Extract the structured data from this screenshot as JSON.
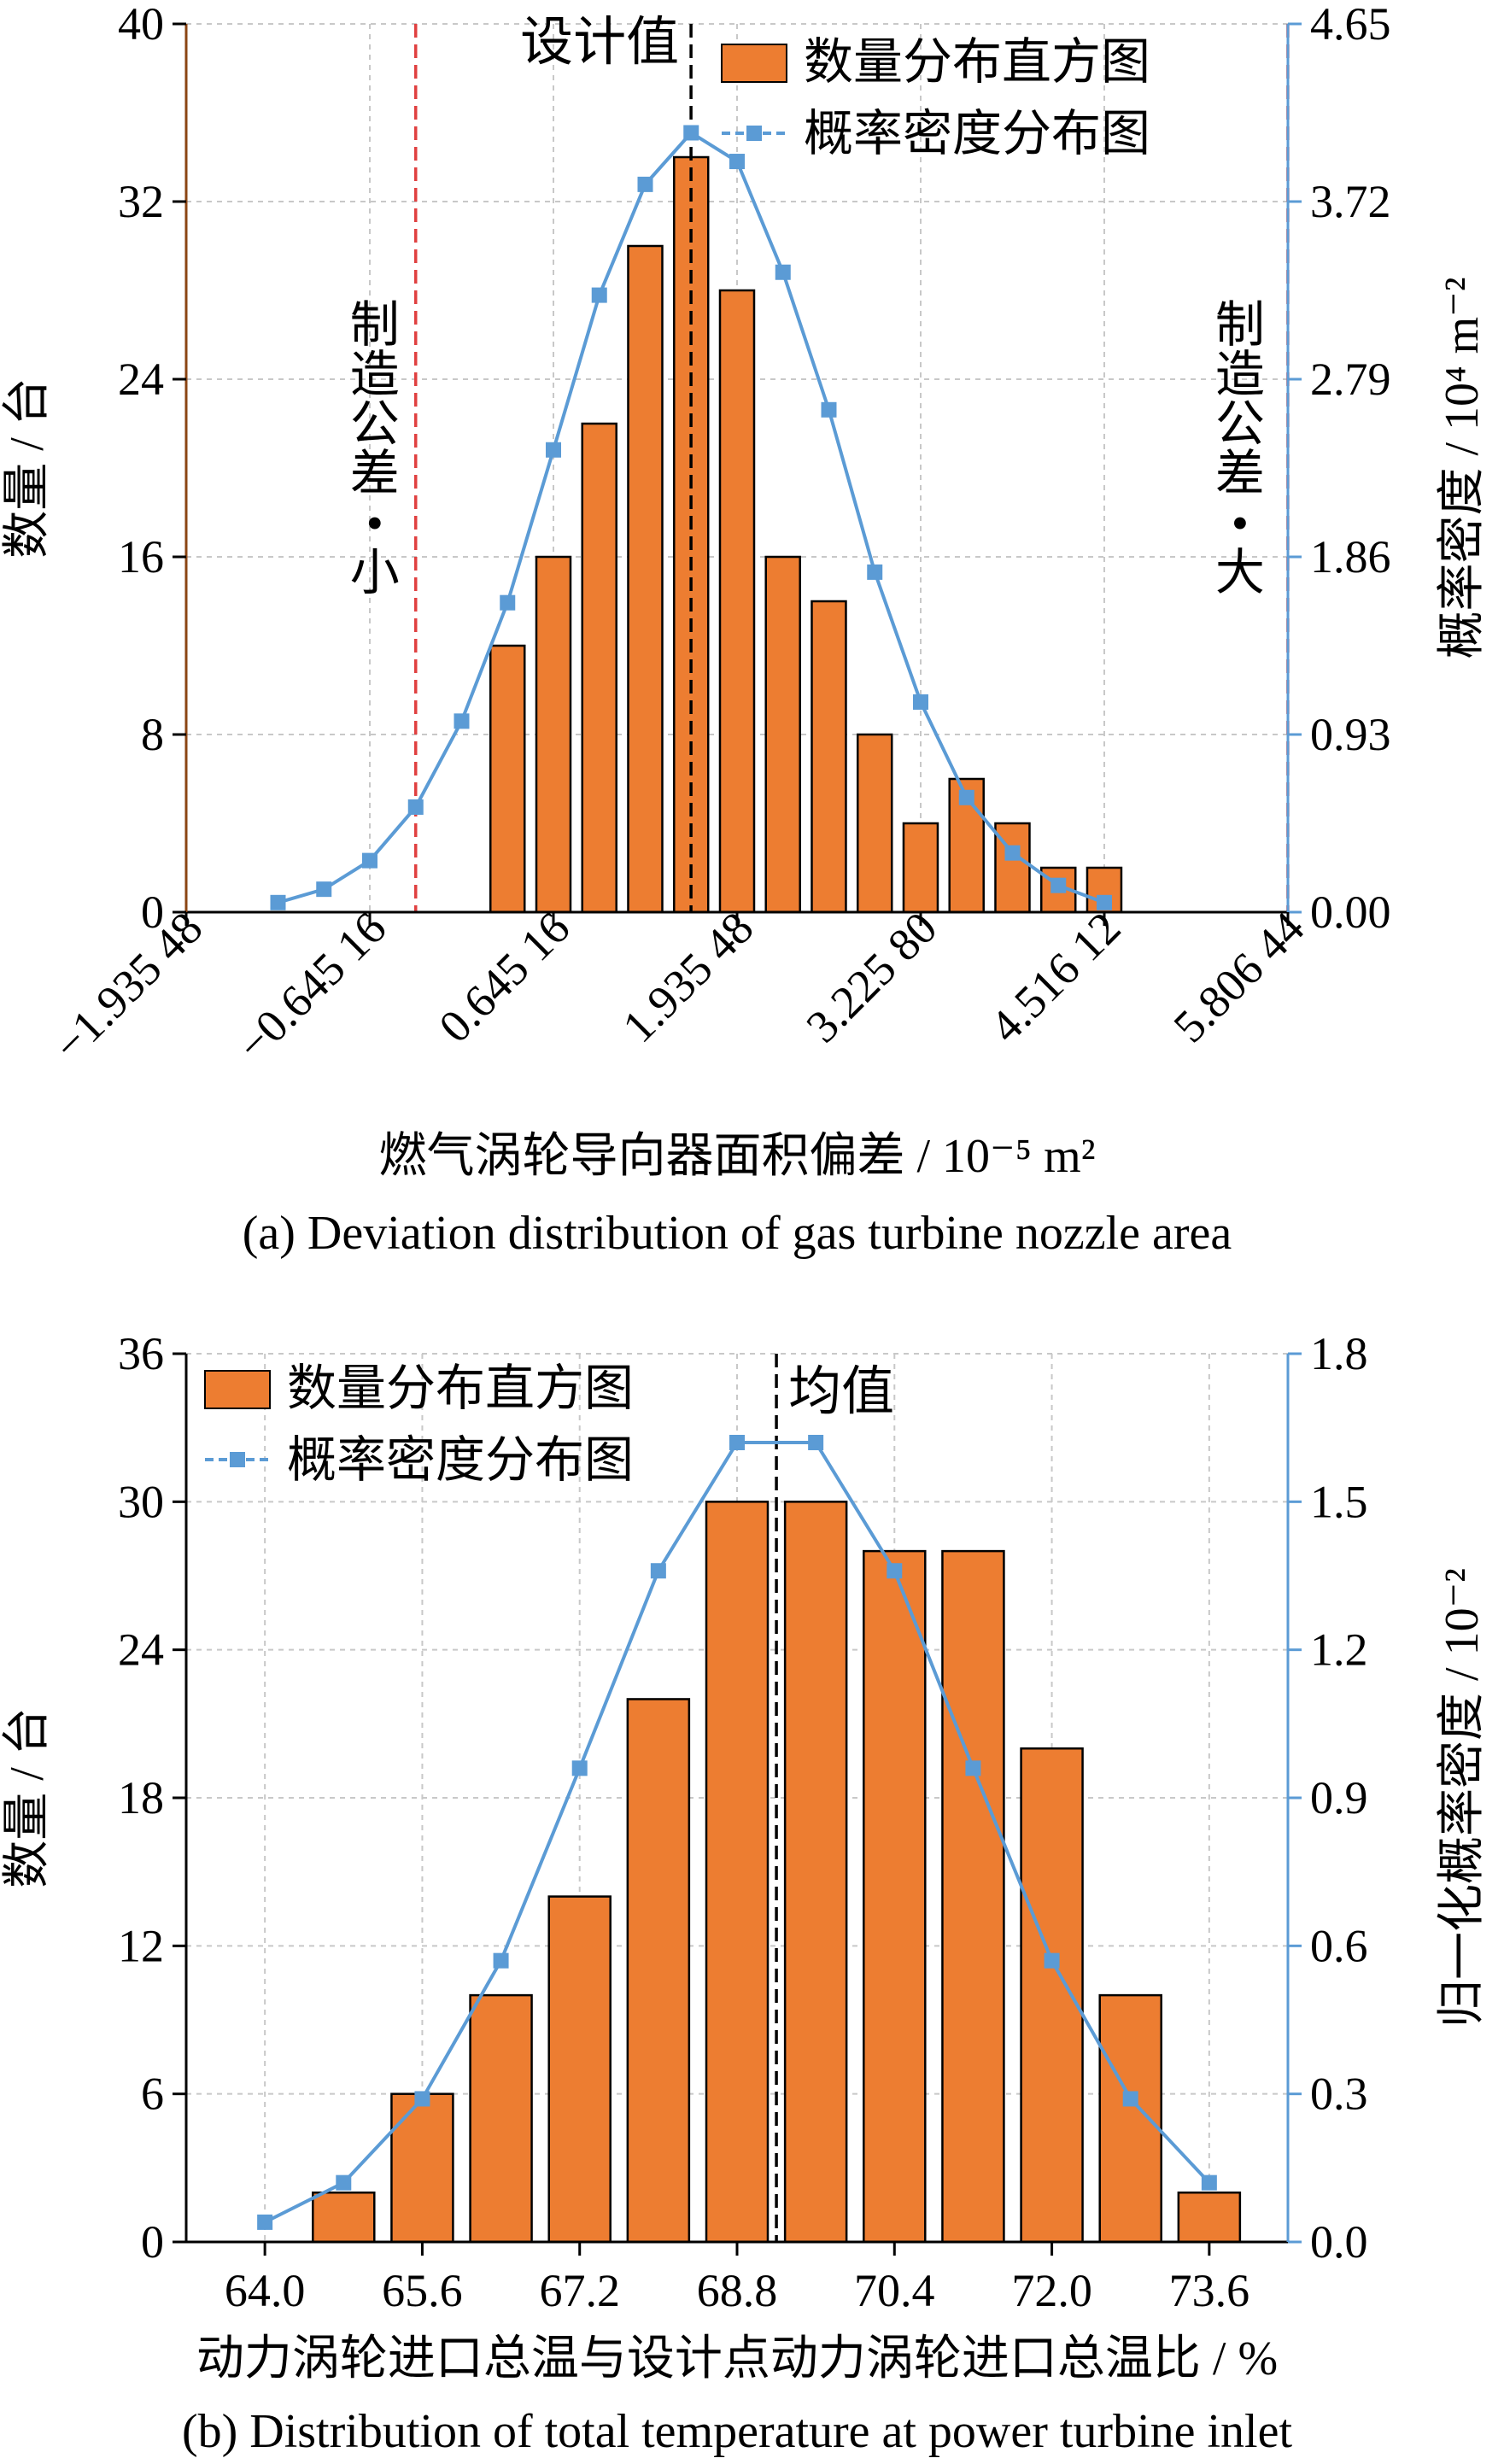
{
  "chart_data": [
    {
      "type": "bar",
      "panel": "a",
      "caption": "(a) Deviation distribution of gas turbine nozzle area",
      "xlabel": "燃气涡轮导向器面积偏差 / 10⁻⁵ m²",
      "ylabel_left": "数量 / 台",
      "ylabel_right": "概率密度 / 10⁴ m⁻²",
      "x_ticks": [
        "−1.935 48",
        "−0.645 16",
        "0.645 16",
        "1.935 48",
        "3.225 80",
        "4.516 12",
        "5.806 44"
      ],
      "x_tick_values": [
        -1.93548,
        -0.64516,
        0.64516,
        1.93548,
        3.2258,
        4.51612,
        5.80644
      ],
      "xlim": [
        -1.93548,
        5.80644
      ],
      "ylim_left": [
        0,
        40
      ],
      "y_ticks_left": [
        "0",
        "8",
        "16",
        "24",
        "32",
        "40"
      ],
      "ylim_right": [
        0,
        4.65
      ],
      "y_ticks_right": [
        "0.00",
        "0.93",
        "1.86",
        "2.79",
        "3.72",
        "4.65"
      ],
      "legend": {
        "position": "top-right",
        "bar_label": "数量分布直方图",
        "line_label": "概率密度分布图"
      },
      "bar_series": {
        "name": "数量分布直方图",
        "color": "#ED7D31",
        "x": [
          0.3225,
          0.6451,
          0.9676,
          1.2902,
          1.6128,
          1.9354,
          2.2579,
          2.5805,
          2.9031,
          3.2256,
          3.5482,
          3.8708,
          4.1934,
          4.5159
        ],
        "values": [
          12,
          16,
          22,
          30,
          34,
          28,
          16,
          14,
          8,
          4,
          6,
          4,
          2,
          2
        ]
      },
      "line_series": {
        "name": "概率密度分布图",
        "color": "#5B9BD5",
        "x": [
          -1.2903,
          -0.9677,
          -0.6452,
          -0.3226,
          0.0,
          0.3226,
          0.6452,
          0.9677,
          1.2903,
          1.6129,
          1.9355,
          2.2581,
          2.5806,
          2.9032,
          3.2258,
          3.5484,
          3.871,
          4.1935,
          4.5161
        ],
        "values": [
          0.05,
          0.12,
          0.27,
          0.55,
          1.0,
          1.62,
          2.42,
          3.23,
          3.81,
          4.08,
          3.93,
          3.35,
          2.63,
          1.78,
          1.1,
          0.6,
          0.31,
          0.14,
          0.05
        ]
      },
      "reference_lines": [
        {
          "label": "设计值",
          "x": 1.612,
          "style": "dashed",
          "color": "#000000"
        },
        {
          "label_chars": [
            "制",
            "造",
            "公",
            "差",
            "•",
            "小"
          ],
          "x": -0.3226,
          "style": "dashed",
          "color": "#E04040"
        },
        {
          "label_chars": [
            "制",
            "造",
            "公",
            "差",
            "•",
            "大"
          ],
          "x": 5.806,
          "style": "dashed",
          "color": "#E04040"
        }
      ]
    },
    {
      "type": "bar",
      "panel": "b",
      "caption": "(b) Distribution of total temperature at power turbine inlet",
      "xlabel": "动力涡轮进口总温与设计点动力涡轮进口总温比 / %",
      "ylabel_left": "数量 / 台",
      "ylabel_right": "归一化概率密度 / 10⁻²",
      "x_ticks": [
        "64.0",
        "65.6",
        "67.2",
        "68.8",
        "70.4",
        "72.0",
        "73.6"
      ],
      "x_tick_values": [
        64.0,
        65.6,
        67.2,
        68.8,
        70.4,
        72.0,
        73.6
      ],
      "xlim": [
        63.2,
        74.4
      ],
      "ylim_left": [
        0,
        36
      ],
      "y_ticks_left": [
        "0",
        "6",
        "12",
        "18",
        "24",
        "30",
        "36"
      ],
      "ylim_right": [
        0,
        1.8
      ],
      "y_ticks_right": [
        "0.0",
        "0.3",
        "0.6",
        "0.9",
        "1.2",
        "1.5",
        "1.8"
      ],
      "legend": {
        "position": "top-left",
        "bar_label": "数量分布直方图",
        "line_label": "概率密度分布图"
      },
      "bar_series": {
        "name": "数量分布直方图",
        "color": "#ED7D31",
        "x": [
          64.8,
          65.6,
          66.4,
          67.2,
          68.0,
          68.8,
          69.6,
          70.4,
          71.2,
          72.0,
          72.8,
          73.6
        ],
        "values": [
          2,
          6,
          10,
          14,
          22,
          30,
          30,
          28,
          28,
          20,
          10,
          2
        ]
      },
      "line_series": {
        "name": "概率密度分布图",
        "color": "#5B9BD5",
        "x": [
          64.0,
          64.8,
          65.6,
          66.4,
          67.2,
          68.0,
          68.8,
          69.6,
          70.4,
          71.2,
          72.0,
          72.8,
          73.6
        ],
        "values": [
          0.04,
          0.12,
          0.29,
          0.57,
          0.96,
          1.36,
          1.62,
          1.62,
          1.36,
          0.96,
          0.57,
          0.29,
          0.12
        ]
      },
      "reference_lines": [
        {
          "label": "均值",
          "x": 69.2,
          "style": "dashed",
          "color": "#000000"
        }
      ]
    }
  ]
}
